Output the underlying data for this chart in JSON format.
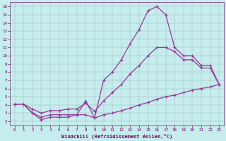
{
  "xlabel": "Windchill (Refroidissement éolien,°C)",
  "bg_color": "#c6eded",
  "line_color": "#993399",
  "xlim": [
    -0.5,
    23.5
  ],
  "ylim": [
    1.5,
    16.5
  ],
  "xticks": [
    0,
    1,
    2,
    3,
    4,
    5,
    6,
    7,
    8,
    9,
    10,
    11,
    12,
    13,
    14,
    15,
    16,
    17,
    18,
    19,
    20,
    21,
    22,
    23
  ],
  "yticks": [
    2,
    3,
    4,
    5,
    6,
    7,
    8,
    9,
    10,
    11,
    12,
    13,
    14,
    15,
    16
  ],
  "x_top": [
    0,
    1,
    2,
    3,
    4,
    5,
    6,
    7,
    8,
    9,
    10,
    11,
    12,
    13,
    14,
    15,
    16,
    17,
    18,
    19,
    20,
    21,
    22,
    23
  ],
  "y_top": [
    4.1,
    4.1,
    3.0,
    2.2,
    2.5,
    2.5,
    2.5,
    2.8,
    4.5,
    2.4,
    7.0,
    8.0,
    9.5,
    11.5,
    13.2,
    15.5,
    16.0,
    15.0,
    11.0,
    10.0,
    10.0,
    8.8,
    8.8,
    6.5
  ],
  "x_mid": [
    0,
    1,
    2,
    3,
    4,
    5,
    6,
    7,
    8,
    9,
    10,
    11,
    12,
    13,
    14,
    15,
    16,
    17,
    18,
    19,
    20,
    21,
    22,
    23
  ],
  "y_mid": [
    4.1,
    4.1,
    3.5,
    3.0,
    3.3,
    3.3,
    3.5,
    3.5,
    4.2,
    3.2,
    4.5,
    5.5,
    6.5,
    7.8,
    8.8,
    10.0,
    11.0,
    11.0,
    10.5,
    9.5,
    9.5,
    8.5,
    8.5,
    6.5
  ],
  "x_bot": [
    0,
    1,
    2,
    3,
    4,
    5,
    6,
    7,
    8,
    9,
    10,
    11,
    12,
    13,
    14,
    15,
    16,
    17,
    18,
    19,
    20,
    21,
    22,
    23
  ],
  "y_bot": [
    4.1,
    4.1,
    3.0,
    2.5,
    2.8,
    2.8,
    2.8,
    2.8,
    2.8,
    2.4,
    2.8,
    3.0,
    3.3,
    3.6,
    4.0,
    4.3,
    4.7,
    5.0,
    5.2,
    5.5,
    5.8,
    6.0,
    6.2,
    6.5
  ]
}
